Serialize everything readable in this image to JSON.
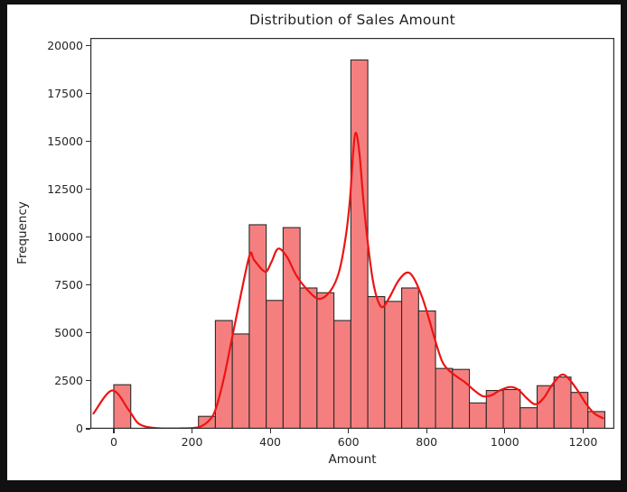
{
  "figure": {
    "title": "Distribution of Sales Amount",
    "xlabel": "Amount",
    "ylabel": "Frequency",
    "background": "#ffffff",
    "outer_background": "#101010"
  },
  "chart_data": {
    "type": "histogram",
    "title": "Distribution of Sales Amount",
    "xlabel": "Amount",
    "ylabel": "Frequency",
    "legend": "none",
    "grid": false,
    "xlim": [
      -60,
      1280
    ],
    "ylim": [
      0,
      20400
    ],
    "x_ticks": [
      0,
      200,
      400,
      600,
      800,
      1000,
      1200
    ],
    "y_ticks": [
      0,
      2500,
      5000,
      7500,
      10000,
      12500,
      15000,
      17500,
      20000
    ],
    "bin_start": 0,
    "bin_width": 43.3,
    "bar_values": [
      2300,
      0,
      0,
      0,
      0,
      650,
      5650,
      4950,
      10650,
      6700,
      10500,
      7350,
      7100,
      5650,
      19250,
      6900,
      6650,
      7350,
      6150,
      3150,
      3100,
      1350,
      2000,
      2050,
      1100,
      2250,
      2700,
      1900,
      900
    ],
    "kde_overlay": true,
    "kde_points": [
      [
        -52,
        800
      ],
      [
        -4,
        2000
      ],
      [
        39,
        950
      ],
      [
        65,
        250
      ],
      [
        108,
        40
      ],
      [
        173,
        25
      ],
      [
        216,
        80
      ],
      [
        242,
        400
      ],
      [
        260,
        1000
      ],
      [
        281,
        2600
      ],
      [
        303,
        4800
      ],
      [
        325,
        7000
      ],
      [
        348,
        9100
      ],
      [
        359,
        8800
      ],
      [
        387,
        8200
      ],
      [
        403,
        8700
      ],
      [
        420,
        9400
      ],
      [
        442,
        9000
      ],
      [
        467,
        8000
      ],
      [
        493,
        7300
      ],
      [
        524,
        6780
      ],
      [
        554,
        7200
      ],
      [
        576,
        8200
      ],
      [
        593,
        10000
      ],
      [
        604,
        12000
      ],
      [
        612,
        14400
      ],
      [
        619,
        15450
      ],
      [
        628,
        14400
      ],
      [
        638,
        12000
      ],
      [
        649,
        9800
      ],
      [
        662,
        7800
      ],
      [
        675,
        6700
      ],
      [
        688,
        6350
      ],
      [
        706,
        6900
      ],
      [
        727,
        7700
      ],
      [
        749,
        8150
      ],
      [
        766,
        7900
      ],
      [
        788,
        6900
      ],
      [
        805,
        5800
      ],
      [
        822,
        4600
      ],
      [
        840,
        3500
      ],
      [
        857,
        3050
      ],
      [
        879,
        2700
      ],
      [
        900,
        2400
      ],
      [
        922,
        2000
      ],
      [
        944,
        1700
      ],
      [
        965,
        1750
      ],
      [
        987,
        2000
      ],
      [
        1013,
        2180
      ],
      [
        1034,
        2050
      ],
      [
        1056,
        1600
      ],
      [
        1078,
        1280
      ],
      [
        1099,
        1600
      ],
      [
        1121,
        2300
      ],
      [
        1145,
        2820
      ],
      [
        1164,
        2600
      ],
      [
        1186,
        2000
      ],
      [
        1208,
        1300
      ],
      [
        1229,
        800
      ],
      [
        1251,
        550
      ]
    ],
    "bar_fill": "#f57f7f",
    "bar_edge": "#2a2a2a",
    "kde_color": "#ed1414",
    "spine_color": "#2e2e2e"
  }
}
